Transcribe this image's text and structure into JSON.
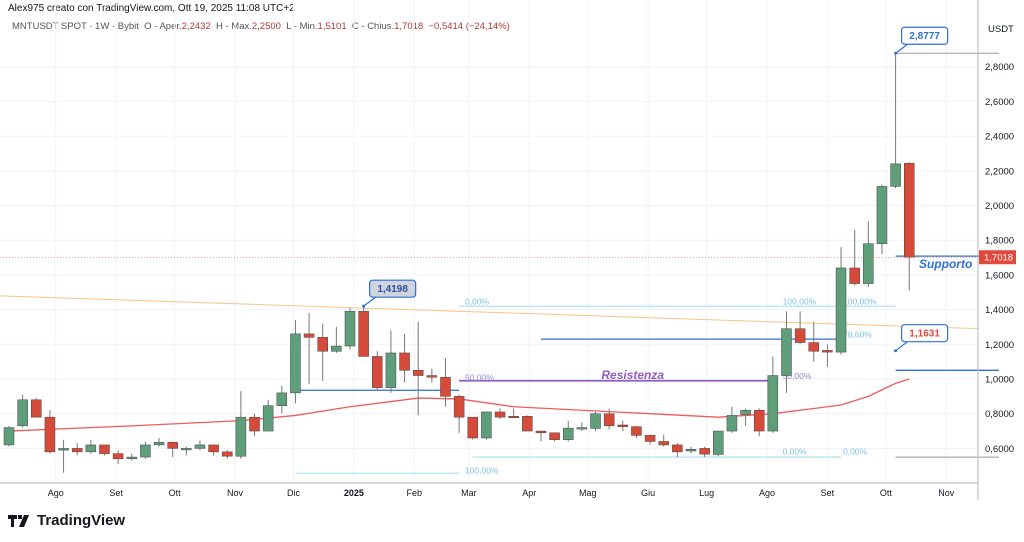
{
  "header": {
    "author_line": "Alex975 creato con TradingView.com, Ott 19, 2025 11:08 UTC+2"
  },
  "legend": {
    "symbol": "MNTUSDT SPOT · 1W · Bybit",
    "open_label": "O - Aper.",
    "open": "2,2432",
    "high_label": "H - Max.",
    "high": "2,2500",
    "low_label": "L - Min.",
    "low": "1,5101",
    "close_label": "C - Chius.",
    "close": "1,7018",
    "change": "−0,5414 (−24,14%)"
  },
  "logo": {
    "text": "TradingView"
  },
  "colors": {
    "up": "#5f9e7a",
    "down": "#d64a3a",
    "ma": "#f05b5b",
    "trend": "#f7c58b",
    "blue": "#2f6fd6",
    "purple": "#8e5cc2",
    "fib": "#a9dff0",
    "price_tag": "#e0483b"
  },
  "chart_data": {
    "type": "candlestick",
    "interval": "1W",
    "currency": "USDT",
    "ylim": [
      0.45,
      3.0
    ],
    "grid": true,
    "y_ticks": [
      0.6,
      0.8,
      1.0,
      1.2,
      1.4,
      1.6,
      1.8,
      2.0,
      2.2,
      2.4,
      2.6,
      2.8
    ],
    "y_tick_labels": [
      "0,6000",
      "0,8000",
      "1,0000",
      "1,2000",
      "1,4000",
      "1,6000",
      "1,8000",
      "2,0000",
      "2,2000",
      "2,4000",
      "2,6000",
      "2,8000"
    ],
    "x_ticks": [
      {
        "date": "2024-08-01",
        "label": "Ago"
      },
      {
        "date": "2024-09-01",
        "label": "Set"
      },
      {
        "date": "2024-10-01",
        "label": "Ott"
      },
      {
        "date": "2024-11-01",
        "label": "Nov"
      },
      {
        "date": "2024-12-01",
        "label": "Dic"
      },
      {
        "date": "2025-01-01",
        "label": "2025",
        "bold": true
      },
      {
        "date": "2025-02-01",
        "label": "Feb"
      },
      {
        "date": "2025-03-01",
        "label": "Mar"
      },
      {
        "date": "2025-04-01",
        "label": "Apr"
      },
      {
        "date": "2025-05-01",
        "label": "Mag"
      },
      {
        "date": "2025-06-01",
        "label": "Giu"
      },
      {
        "date": "2025-07-01",
        "label": "Lug"
      },
      {
        "date": "2025-08-01",
        "label": "Ago"
      },
      {
        "date": "2025-09-01",
        "label": "Set"
      },
      {
        "date": "2025-10-01",
        "label": "Ott"
      },
      {
        "date": "2025-11-01",
        "label": "Nov"
      }
    ],
    "candles": [
      [
        "2024-07-08",
        0.62,
        0.73,
        0.61,
        0.72
      ],
      [
        "2024-07-15",
        0.73,
        0.91,
        0.72,
        0.88
      ],
      [
        "2024-07-22",
        0.88,
        0.89,
        0.78,
        0.78
      ],
      [
        "2024-07-29",
        0.78,
        0.82,
        0.57,
        0.58
      ],
      [
        "2024-08-05",
        0.59,
        0.65,
        0.46,
        0.6
      ],
      [
        "2024-08-12",
        0.6,
        0.63,
        0.56,
        0.58
      ],
      [
        "2024-08-19",
        0.58,
        0.65,
        0.57,
        0.62
      ],
      [
        "2024-08-26",
        0.62,
        0.62,
        0.56,
        0.57
      ],
      [
        "2024-09-02",
        0.57,
        0.59,
        0.51,
        0.54
      ],
      [
        "2024-09-09",
        0.54,
        0.57,
        0.53,
        0.55
      ],
      [
        "2024-09-16",
        0.55,
        0.64,
        0.54,
        0.62
      ],
      [
        "2024-09-23",
        0.62,
        0.66,
        0.61,
        0.635
      ],
      [
        "2024-09-30",
        0.635,
        0.64,
        0.55,
        0.6
      ],
      [
        "2024-10-07",
        0.6,
        0.61,
        0.56,
        0.6
      ],
      [
        "2024-10-14",
        0.6,
        0.645,
        0.59,
        0.62
      ],
      [
        "2024-10-21",
        0.62,
        0.62,
        0.56,
        0.58
      ],
      [
        "2024-10-28",
        0.58,
        0.59,
        0.54,
        0.555
      ],
      [
        "2024-11-04",
        0.555,
        0.93,
        0.54,
        0.78
      ],
      [
        "2024-11-11",
        0.78,
        0.8,
        0.67,
        0.7
      ],
      [
        "2024-11-18",
        0.7,
        0.88,
        0.7,
        0.846
      ],
      [
        "2024-11-25",
        0.846,
        0.96,
        0.8,
        0.92
      ],
      [
        "2024-12-02",
        0.92,
        1.34,
        0.86,
        1.26
      ],
      [
        "2024-12-09",
        1.26,
        1.38,
        0.97,
        1.24
      ],
      [
        "2024-12-16",
        1.24,
        1.32,
        0.99,
        1.16
      ],
      [
        "2024-12-23",
        1.16,
        1.3,
        1.15,
        1.19
      ],
      [
        "2024-12-30",
        1.19,
        1.41,
        1.17,
        1.39
      ],
      [
        "2025-01-06",
        1.39,
        1.4198,
        1.13,
        1.13
      ],
      [
        "2025-01-13",
        1.13,
        1.16,
        0.93,
        0.95
      ],
      [
        "2025-01-20",
        0.95,
        1.28,
        0.92,
        1.15
      ],
      [
        "2025-01-27",
        1.15,
        1.26,
        0.98,
        1.05
      ],
      [
        "2025-02-03",
        1.05,
        1.33,
        0.79,
        1.02
      ],
      [
        "2025-02-10",
        1.02,
        1.06,
        0.98,
        1.01
      ],
      [
        "2025-02-17",
        1.01,
        1.12,
        0.84,
        0.9
      ],
      [
        "2025-02-24",
        0.9,
        0.91,
        0.69,
        0.78
      ],
      [
        "2025-03-03",
        0.78,
        0.78,
        0.65,
        0.66
      ],
      [
        "2025-03-10",
        0.66,
        0.81,
        0.65,
        0.81
      ],
      [
        "2025-03-17",
        0.81,
        0.83,
        0.77,
        0.78
      ],
      [
        "2025-03-24",
        0.785,
        0.83,
        0.78,
        0.78
      ],
      [
        "2025-03-31",
        0.785,
        0.79,
        0.7,
        0.7
      ],
      [
        "2025-04-07",
        0.7,
        0.7,
        0.64,
        0.69
      ],
      [
        "2025-04-14",
        0.69,
        0.69,
        0.64,
        0.65
      ],
      [
        "2025-04-21",
        0.65,
        0.76,
        0.64,
        0.717
      ],
      [
        "2025-04-28",
        0.716,
        0.75,
        0.7,
        0.72
      ],
      [
        "2025-05-05",
        0.715,
        0.81,
        0.7,
        0.8
      ],
      [
        "2025-05-12",
        0.8,
        0.83,
        0.71,
        0.73
      ],
      [
        "2025-05-19",
        0.735,
        0.76,
        0.7,
        0.725
      ],
      [
        "2025-05-26",
        0.725,
        0.73,
        0.66,
        0.675
      ],
      [
        "2025-06-02",
        0.675,
        0.68,
        0.62,
        0.64
      ],
      [
        "2025-06-09",
        0.64,
        0.68,
        0.61,
        0.62
      ],
      [
        "2025-06-16",
        0.62,
        0.63,
        0.55,
        0.58
      ],
      [
        "2025-06-23",
        0.585,
        0.61,
        0.57,
        0.595
      ],
      [
        "2025-06-30",
        0.6,
        0.61,
        0.55,
        0.567
      ],
      [
        "2025-07-07",
        0.565,
        0.7,
        0.555,
        0.7
      ],
      [
        "2025-07-14",
        0.7,
        0.84,
        0.69,
        0.79
      ],
      [
        "2025-07-21",
        0.795,
        0.83,
        0.73,
        0.82
      ],
      [
        "2025-07-28",
        0.82,
        0.83,
        0.67,
        0.7
      ],
      [
        "2025-08-04",
        0.7,
        1.13,
        0.69,
        1.02
      ],
      [
        "2025-08-11",
        1.02,
        1.39,
        0.92,
        1.29
      ],
      [
        "2025-08-18",
        1.29,
        1.39,
        1.2,
        1.21
      ],
      [
        "2025-08-25",
        1.21,
        1.33,
        1.1,
        1.16
      ],
      [
        "2025-09-01",
        1.165,
        1.2,
        1.07,
        1.155
      ],
      [
        "2025-09-08",
        1.155,
        1.76,
        1.14,
        1.64
      ],
      [
        "2025-09-15",
        1.64,
        1.86,
        1.54,
        1.55
      ],
      [
        "2025-09-22",
        1.55,
        1.91,
        1.53,
        1.78
      ],
      [
        "2025-09-29",
        1.78,
        2.12,
        1.72,
        2.11
      ],
      [
        "2025-10-06",
        2.11,
        2.8777,
        2.1,
        2.24
      ],
      [
        "2025-10-13",
        2.2432,
        2.25,
        1.5101,
        1.7018
      ]
    ],
    "moving_average": [
      [
        "2024-07-08",
        0.7
      ],
      [
        "2024-09-09",
        0.73
      ],
      [
        "2024-11-04",
        0.76
      ],
      [
        "2024-12-02",
        0.79
      ],
      [
        "2024-12-30",
        0.84
      ],
      [
        "2025-02-03",
        0.89
      ],
      [
        "2025-02-24",
        0.885
      ],
      [
        "2025-03-24",
        0.84
      ],
      [
        "2025-04-28",
        0.82
      ],
      [
        "2025-06-02",
        0.8
      ],
      [
        "2025-07-07",
        0.78
      ],
      [
        "2025-08-04",
        0.8
      ],
      [
        "2025-08-25",
        0.83
      ],
      [
        "2025-09-08",
        0.85
      ],
      [
        "2025-09-22",
        0.9
      ],
      [
        "2025-10-06",
        0.975
      ],
      [
        "2025-10-13",
        1.0
      ]
    ],
    "last_price": {
      "value": 1.7018,
      "label": "1,7018"
    },
    "annotations": [
      {
        "type": "callout",
        "date": "2025-01-06",
        "price": 1.4198,
        "label": "1,4198",
        "style": "gray"
      },
      {
        "type": "callout",
        "date": "2025-10-06",
        "price": 2.8777,
        "label": "2,8777",
        "style": "blue"
      },
      {
        "type": "callout",
        "date": "2025-10-06",
        "price": 1.1631,
        "label": "1,1631",
        "style": "red"
      },
      {
        "type": "text",
        "date": "2025-10-18",
        "price": 1.64,
        "label": "Supporto",
        "color": "blue"
      },
      {
        "type": "text",
        "date": "2025-05-08",
        "price": 1.0,
        "label": "Resistenza",
        "color": "purple"
      }
    ],
    "lines": [
      {
        "kind": "trend",
        "from": [
          "2024-07-01",
          1.48
        ],
        "to": [
          "2025-11-17",
          1.29
        ]
      },
      {
        "kind": "blue",
        "from": [
          "2024-12-02",
          0.935
        ],
        "to": [
          "2025-02-24",
          0.935
        ]
      },
      {
        "kind": "blue",
        "from": [
          "2025-04-07",
          1.23
        ],
        "to": [
          "2025-09-08",
          1.23
        ]
      },
      {
        "kind": "blue",
        "from": [
          "2025-10-06",
          1.708
        ],
        "to": [
          "2025-11-28",
          1.708
        ]
      },
      {
        "kind": "blue",
        "from": [
          "2025-10-06",
          1.05
        ],
        "to": [
          "2025-11-28",
          1.05
        ]
      },
      {
        "kind": "purple",
        "from": [
          "2025-02-24",
          0.99
        ],
        "to": [
          "2025-08-04",
          0.99
        ]
      },
      {
        "kind": "gray",
        "from": [
          "2025-10-06",
          2.8777
        ],
        "to": [
          "2025-11-28",
          2.8777
        ]
      },
      {
        "kind": "gray",
        "from": [
          "2025-10-06",
          0.55
        ],
        "to": [
          "2025-11-28",
          0.55
        ]
      },
      {
        "kind": "fib",
        "from": [
          "2025-02-24",
          1.4198
        ],
        "to": [
          "2025-10-06",
          1.4198
        ]
      },
      {
        "kind": "fib",
        "from": [
          "2024-12-02",
          0.457
        ],
        "to": [
          "2025-02-24",
          0.457
        ]
      },
      {
        "kind": "fib",
        "from": [
          "2025-03-03",
          0.55
        ],
        "to": [
          "2025-09-08",
          0.55
        ]
      }
    ],
    "fib_labels": [
      {
        "date": "2025-02-27",
        "price": 1.43,
        "label": "0,00%"
      },
      {
        "date": "2025-02-27",
        "price": 0.99,
        "label": "50,00%"
      },
      {
        "date": "2025-02-27",
        "price": 0.455,
        "label": "100,00%"
      },
      {
        "date": "2025-08-09",
        "price": 1.43,
        "label": "100,00%"
      },
      {
        "date": "2025-08-09",
        "price": 1.0,
        "label": "50,00%"
      },
      {
        "date": "2025-08-09",
        "price": 0.565,
        "label": "0,00%"
      },
      {
        "date": "2025-09-09",
        "price": 1.43,
        "label": "100,00%"
      },
      {
        "date": "2025-09-09",
        "price": 1.24,
        "label": "78,60%"
      },
      {
        "date": "2025-09-09",
        "price": 0.565,
        "label": "0,00%"
      }
    ]
  }
}
